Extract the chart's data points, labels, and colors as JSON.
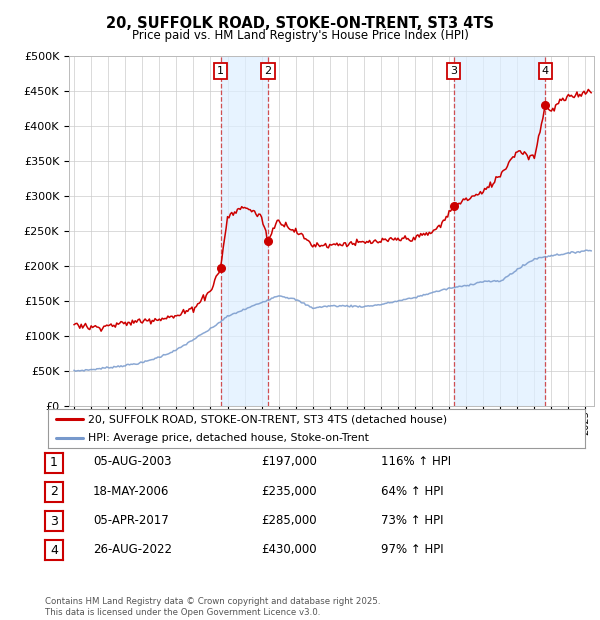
{
  "title": "20, SUFFOLK ROAD, STOKE-ON-TRENT, ST3 4TS",
  "subtitle": "Price paid vs. HM Land Registry's House Price Index (HPI)",
  "sales": [
    {
      "label": "1",
      "date_x": 2003.59,
      "price": 197000,
      "hpi_pct": "116% ↑ HPI",
      "date_str": "05-AUG-2003"
    },
    {
      "label": "2",
      "date_x": 2006.38,
      "price": 235000,
      "hpi_pct": "64% ↑ HPI",
      "date_str": "18-MAY-2006"
    },
    {
      "label": "3",
      "date_x": 2017.26,
      "price": 285000,
      "hpi_pct": "73% ↑ HPI",
      "date_str": "05-APR-2017"
    },
    {
      "label": "4",
      "date_x": 2022.65,
      "price": 430000,
      "hpi_pct": "97% ↑ HPI",
      "date_str": "26-AUG-2022"
    }
  ],
  "legend_line1": "20, SUFFOLK ROAD, STOKE-ON-TRENT, ST3 4TS (detached house)",
  "legend_line2": "HPI: Average price, detached house, Stoke-on-Trent",
  "footer": "Contains HM Land Registry data © Crown copyright and database right 2025.\nThis data is licensed under the Open Government Licence v3.0.",
  "red_color": "#cc0000",
  "blue_color": "#7799cc",
  "vline_color": "#cc3333",
  "bg_color": "#ffffff",
  "grid_color": "#cccccc",
  "highlight_color": "#ddeeff",
  "ylim": [
    0,
    500000
  ],
  "yticks": [
    0,
    50000,
    100000,
    150000,
    200000,
    250000,
    300000,
    350000,
    400000,
    450000,
    500000
  ],
  "xlim_start": 1994.7,
  "xlim_end": 2025.5,
  "hpi_anchors_x": [
    1995,
    1996,
    1997,
    1998,
    1999,
    2000,
    2001,
    2002,
    2003,
    2004,
    2005,
    2006,
    2007,
    2008,
    2009,
    2010,
    2011,
    2012,
    2013,
    2014,
    2015,
    2016,
    2017,
    2018,
    2019,
    2020,
    2021,
    2022,
    2023,
    2024,
    2025
  ],
  "hpi_anchors_y": [
    50000,
    52000,
    55000,
    58000,
    62000,
    70000,
    80000,
    95000,
    110000,
    128000,
    138000,
    148000,
    158000,
    152000,
    140000,
    143000,
    143000,
    142000,
    145000,
    150000,
    155000,
    162000,
    168000,
    172000,
    178000,
    178000,
    195000,
    210000,
    215000,
    218000,
    222000
  ],
  "prop_anchors_x": [
    1995,
    1996,
    1997,
    1998,
    1999,
    2000,
    2001,
    2002,
    2003.0,
    2003.59,
    2004,
    2005,
    2006.0,
    2006.38,
    2006.7,
    2007.0,
    2008,
    2009,
    2010,
    2011,
    2012,
    2013,
    2014,
    2015,
    2016,
    2016.5,
    2017.26,
    2017.5,
    2018,
    2019,
    2020,
    2021,
    2022.0,
    2022.65,
    2023,
    2023.5,
    2024,
    2024.5,
    2025.0,
    2025.3
  ],
  "prop_anchors_y": [
    118000,
    112000,
    115000,
    118000,
    122000,
    125000,
    128000,
    140000,
    165000,
    197000,
    270000,
    285000,
    270000,
    235000,
    255000,
    265000,
    250000,
    230000,
    230000,
    232000,
    233000,
    235000,
    238000,
    240000,
    248000,
    258000,
    285000,
    290000,
    295000,
    305000,
    330000,
    365000,
    355000,
    430000,
    420000,
    435000,
    440000,
    445000,
    448000,
    450000
  ]
}
